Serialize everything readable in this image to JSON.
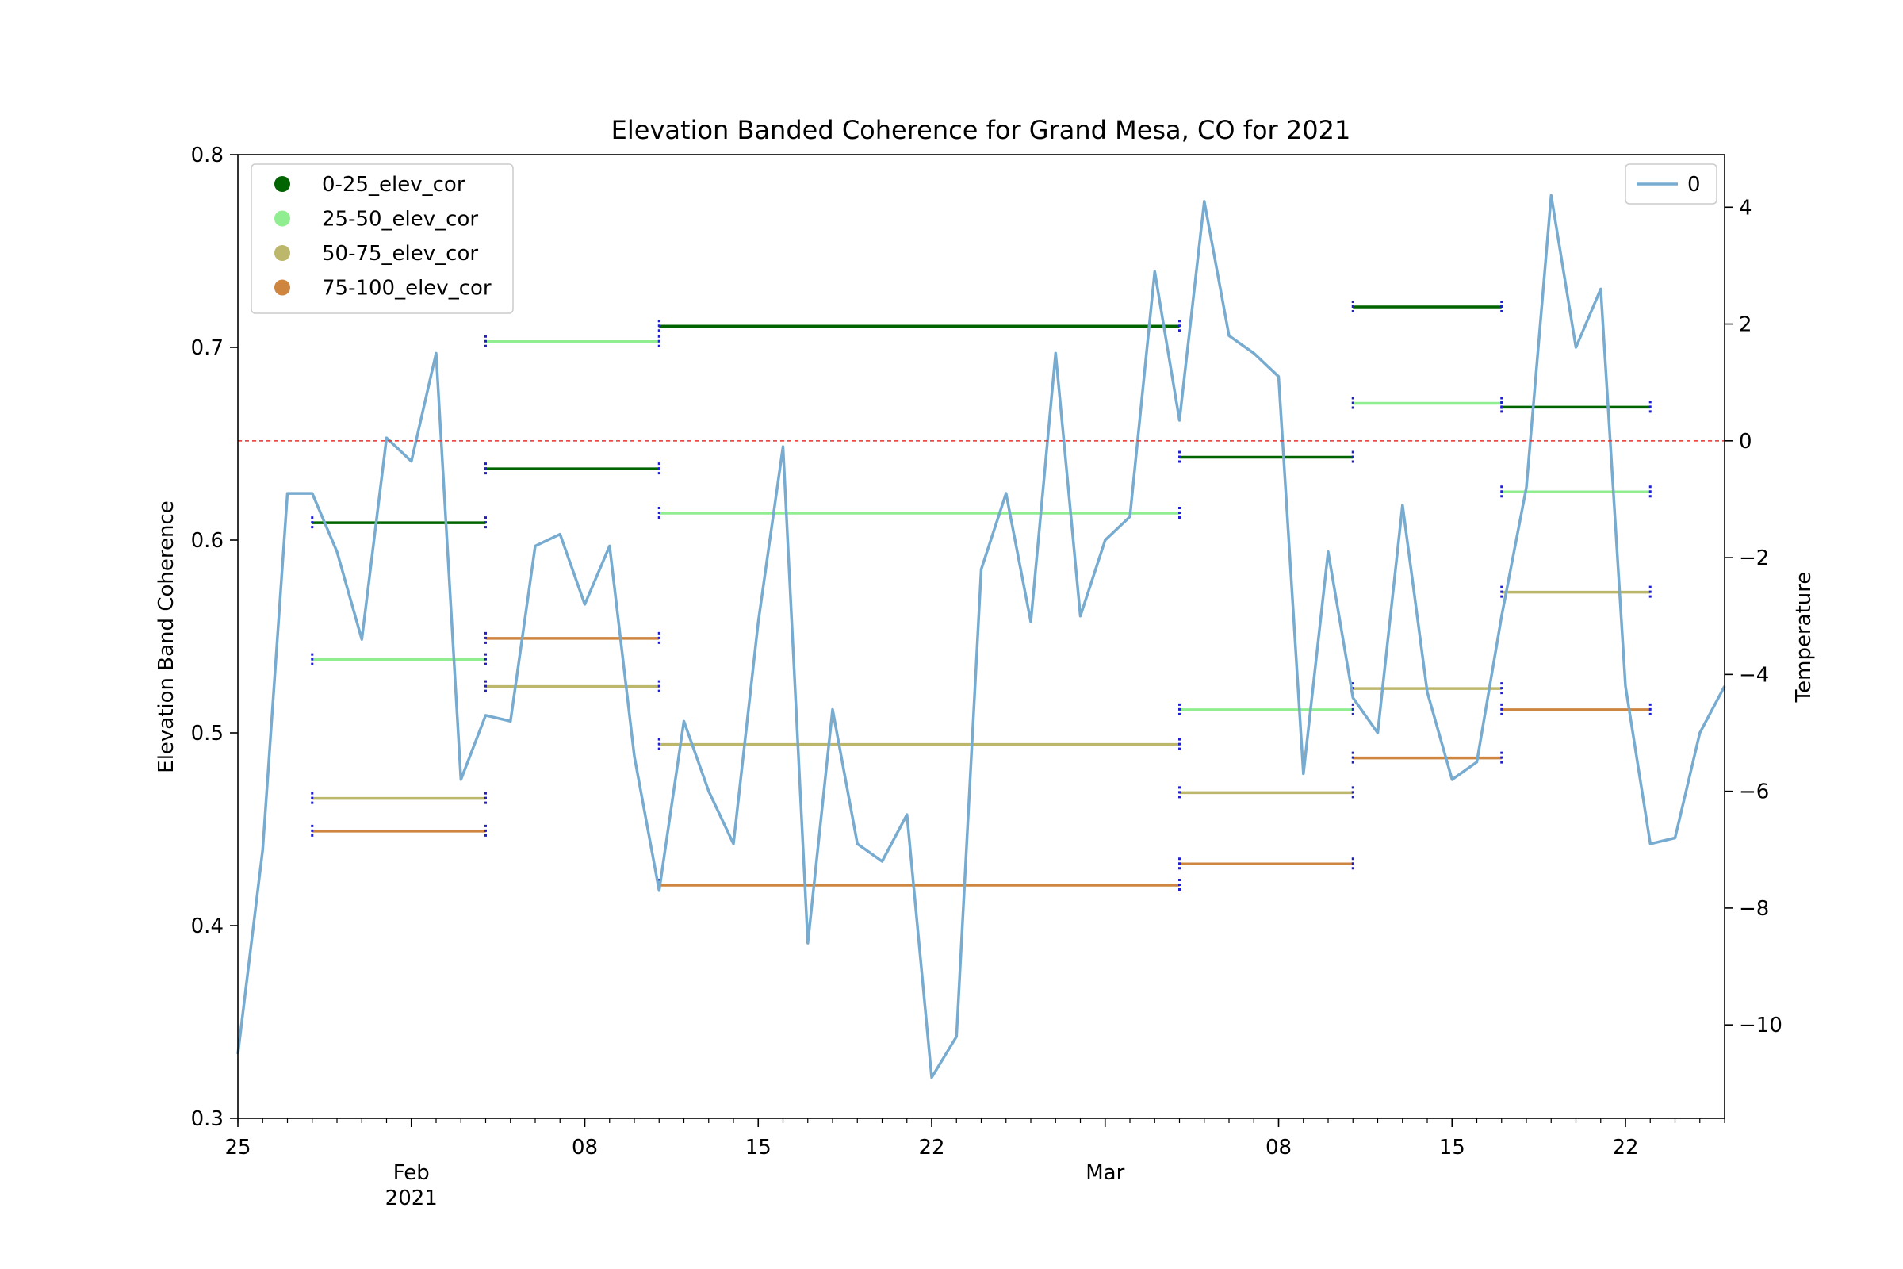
{
  "chart_data": {
    "type": "line",
    "title": "Elevation Banded Coherence for Grand Mesa, CO for 2021",
    "ylabel": "Elevation Band Coherence",
    "y2label": "Temperature",
    "ylim": [
      0.3,
      0.8
    ],
    "y2lim": [
      -11.6,
      4.9
    ],
    "xlim": [
      "2021-01-25",
      "2021-03-26"
    ],
    "y_ticks": [
      0.3,
      0.4,
      0.5,
      0.6,
      0.7,
      0.8
    ],
    "y_tick_labels": [
      "0.3",
      "0.4",
      "0.5",
      "0.6",
      "0.7",
      "0.8"
    ],
    "y2_ticks": [
      4,
      2,
      0,
      -2,
      -4,
      -6,
      -8,
      -10
    ],
    "y2_tick_labels": [
      "4",
      "2",
      "0",
      "−2",
      "−4",
      "−6",
      "−8",
      "−10"
    ],
    "x_ticks": [
      {
        "date": "2021-01-25",
        "labels": [
          "25"
        ]
      },
      {
        "date": "2021-02-01",
        "labels": [
          "",
          "Feb",
          "2021"
        ]
      },
      {
        "date": "2021-02-08",
        "labels": [
          "08"
        ]
      },
      {
        "date": "2021-02-15",
        "labels": [
          "15"
        ]
      },
      {
        "date": "2021-02-22",
        "labels": [
          "22"
        ]
      },
      {
        "date": "2021-03-01",
        "labels": [
          "",
          "Mar"
        ]
      },
      {
        "date": "2021-03-08",
        "labels": [
          "08"
        ]
      },
      {
        "date": "2021-03-15",
        "labels": [
          "15"
        ]
      },
      {
        "date": "2021-03-22",
        "labels": [
          "22"
        ]
      }
    ],
    "zero_line": {
      "y2": 0,
      "color": "#e8302a"
    },
    "band_legend": {
      "placement": "upper-left",
      "entries": [
        {
          "label": "0-25_elev_cor",
          "color": "#006400"
        },
        {
          "label": "25-50_elev_cor",
          "color": "#90ee90"
        },
        {
          "label": "50-75_elev_cor",
          "color": "#bdb76b"
        },
        {
          "label": "75-100_elev_cor",
          "color": "#cd853f"
        }
      ]
    },
    "temp_legend": {
      "placement": "upper-right",
      "label": "0",
      "color": "#77abd0"
    },
    "band_segments": [
      {
        "start": "2021-01-28",
        "end": "2021-02-04",
        "values": [
          0.609,
          0.538,
          0.466,
          0.449
        ]
      },
      {
        "start": "2021-02-04",
        "end": "2021-02-11",
        "values": [
          0.637,
          0.703,
          0.524,
          0.549
        ]
      },
      {
        "start": "2021-02-11",
        "end": "2021-03-04",
        "values": [
          0.711,
          0.614,
          0.494,
          0.421
        ]
      },
      {
        "start": "2021-03-04",
        "end": "2021-03-11",
        "values": [
          0.643,
          0.512,
          0.469,
          0.432
        ]
      },
      {
        "start": "2021-03-11",
        "end": "2021-03-17",
        "values": [
          0.721,
          0.671,
          0.523,
          0.487
        ]
      },
      {
        "start": "2021-03-17",
        "end": "2021-03-23",
        "values": [
          0.669,
          0.625,
          0.573,
          0.512
        ]
      }
    ],
    "errorbar_color": "#1f1fd0",
    "temperature": {
      "name": "0",
      "color": "#77abd0",
      "x": [
        "2021-01-25",
        "2021-01-26",
        "2021-01-27",
        "2021-01-28",
        "2021-01-29",
        "2021-01-30",
        "2021-01-31",
        "2021-02-01",
        "2021-02-02",
        "2021-02-03",
        "2021-02-04",
        "2021-02-05",
        "2021-02-06",
        "2021-02-07",
        "2021-02-08",
        "2021-02-09",
        "2021-02-10",
        "2021-02-11",
        "2021-02-12",
        "2021-02-13",
        "2021-02-14",
        "2021-02-15",
        "2021-02-16",
        "2021-02-17",
        "2021-02-18",
        "2021-02-19",
        "2021-02-20",
        "2021-02-21",
        "2021-02-22",
        "2021-02-23",
        "2021-02-24",
        "2021-02-25",
        "2021-02-26",
        "2021-02-27",
        "2021-02-28",
        "2021-03-01",
        "2021-03-02",
        "2021-03-03",
        "2021-03-04",
        "2021-03-05",
        "2021-03-06",
        "2021-03-07",
        "2021-03-08",
        "2021-03-09",
        "2021-03-10",
        "2021-03-11",
        "2021-03-12",
        "2021-03-13",
        "2021-03-14",
        "2021-03-15",
        "2021-03-16",
        "2021-03-17",
        "2021-03-18",
        "2021-03-19",
        "2021-03-20",
        "2021-03-21",
        "2021-03-22",
        "2021-03-23",
        "2021-03-24",
        "2021-03-25",
        "2021-03-26"
      ],
      "values": [
        -10.5,
        -7.0,
        -0.9,
        -0.9,
        -1.9,
        -3.4,
        0.05,
        -0.35,
        1.5,
        -5.8,
        -4.7,
        -4.8,
        -1.8,
        -1.6,
        -2.8,
        -1.8,
        -5.4,
        -7.7,
        -4.8,
        -6.0,
        -6.9,
        -3.1,
        -0.1,
        -8.6,
        -4.6,
        -6.9,
        -7.2,
        -6.4,
        -10.9,
        -10.2,
        -2.2,
        -0.9,
        -3.1,
        1.5,
        -3.0,
        -1.7,
        -1.3,
        2.9,
        0.35,
        4.1,
        1.8,
        1.5,
        1.1,
        -5.7,
        -1.9,
        -4.4,
        -5.0,
        -1.1,
        -4.3,
        -5.8,
        -5.5,
        -3.0,
        -0.8,
        4.2,
        1.6,
        2.6,
        -4.2,
        -6.9,
        -6.8,
        -5.0,
        -4.2
      ]
    }
  }
}
